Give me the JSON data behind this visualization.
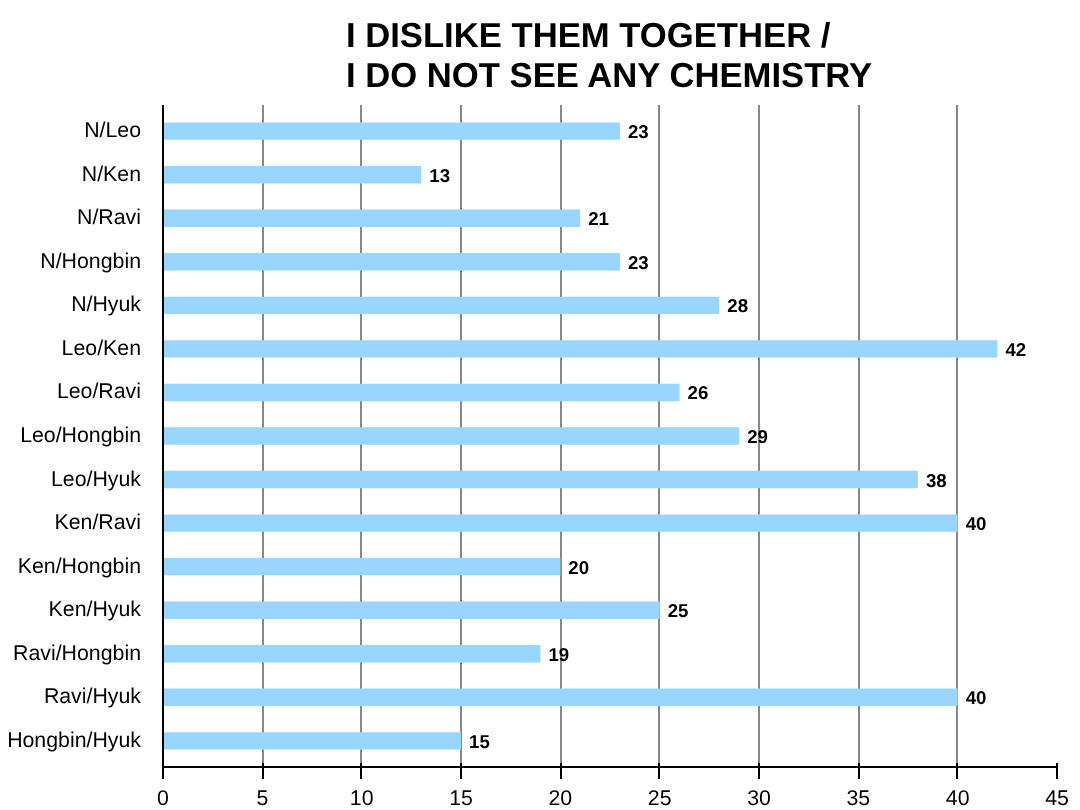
{
  "chart_data": {
    "type": "bar",
    "orientation": "horizontal",
    "title": "I DISLIKE THEM TOGETHER / I DO NOT SEE ANY CHEMISTRY",
    "categories": [
      "N/Leo",
      "N/Ken",
      "N/Ravi",
      "N/Hongbin",
      "N/Hyuk",
      "Leo/Ken",
      "Leo/Ravi",
      "Leo/Hongbin",
      "Leo/Hyuk",
      "Ken/Ravi",
      "Ken/Hongbin",
      "Ken/Hyuk",
      "Ravi/Hongbin",
      "Ravi/Hyuk",
      "Hongbin/Hyuk"
    ],
    "values": [
      23,
      13,
      21,
      23,
      28,
      42,
      26,
      29,
      38,
      40,
      20,
      25,
      19,
      40,
      15
    ],
    "color": "#99d6ff",
    "data_labels": true,
    "xlim": [
      0,
      45
    ],
    "xticks": [
      0,
      5,
      10,
      15,
      20,
      25,
      30,
      35,
      40,
      45
    ],
    "grid": "x"
  }
}
